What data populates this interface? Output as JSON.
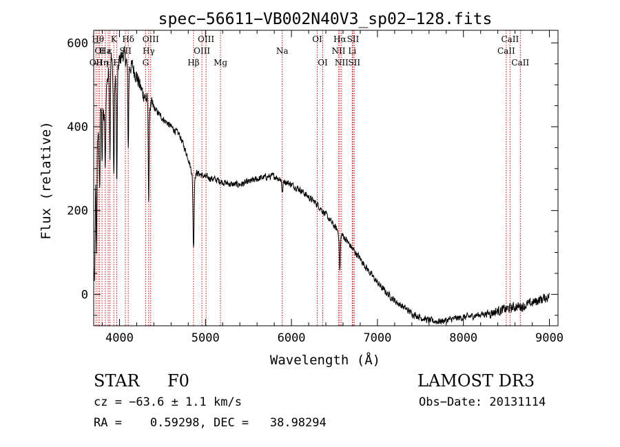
{
  "chart_data": {
    "type": "line",
    "title": "spec−56611−VB002N40V3_sp02−128.fits",
    "xlabel": "Wavelength (Å)",
    "ylabel": "Flux (relative)",
    "xlim": [
      3700,
      9100
    ],
    "ylim": [
      -75,
      630
    ],
    "xticks": [
      4000,
      5000,
      6000,
      7000,
      8000,
      9000
    ],
    "yticks": [
      0,
      200,
      400,
      600
    ],
    "x_minor_step": 200,
    "y_minor_step": 50,
    "line_color": "#000000",
    "marker_color": "#cc0000",
    "spectrum_knots": [
      [
        3700,
        60
      ],
      [
        3710,
        10
      ],
      [
        3725,
        320
      ],
      [
        3745,
        390
      ],
      [
        3760,
        360
      ],
      [
        3790,
        470
      ],
      [
        3820,
        420
      ],
      [
        3850,
        500
      ],
      [
        3880,
        540
      ],
      [
        3900,
        580
      ],
      [
        3935,
        500
      ],
      [
        3970,
        520
      ],
      [
        4000,
        560
      ],
      [
        4050,
        575
      ],
      [
        4102,
        540
      ],
      [
        4150,
        545
      ],
      [
        4200,
        520
      ],
      [
        4250,
        490
      ],
      [
        4300,
        470
      ],
      [
        4340,
        455
      ],
      [
        4400,
        445
      ],
      [
        4500,
        420
      ],
      [
        4600,
        400
      ],
      [
        4700,
        380
      ],
      [
        4800,
        325
      ],
      [
        4830,
        300
      ],
      [
        4861,
        280
      ],
      [
        4900,
        290
      ],
      [
        4950,
        285
      ],
      [
        5000,
        280
      ],
      [
        5100,
        275
      ],
      [
        5200,
        268
      ],
      [
        5300,
        262
      ],
      [
        5400,
        262
      ],
      [
        5500,
        268
      ],
      [
        5600,
        275
      ],
      [
        5700,
        280
      ],
      [
        5800,
        282
      ],
      [
        5900,
        272
      ],
      [
        6000,
        262
      ],
      [
        6100,
        250
      ],
      [
        6200,
        232
      ],
      [
        6300,
        215
      ],
      [
        6400,
        190
      ],
      [
        6500,
        162
      ],
      [
        6563,
        145
      ],
      [
        6600,
        140
      ],
      [
        6700,
        112
      ],
      [
        6800,
        85
      ],
      [
        6900,
        55
      ],
      [
        7000,
        28
      ],
      [
        7100,
        5
      ],
      [
        7200,
        -15
      ],
      [
        7300,
        -30
      ],
      [
        7400,
        -45
      ],
      [
        7500,
        -55
      ],
      [
        7600,
        -62
      ],
      [
        7700,
        -65
      ],
      [
        7800,
        -62
      ],
      [
        7900,
        -58
      ],
      [
        8000,
        -55
      ],
      [
        8100,
        -52
      ],
      [
        8200,
        -48
      ],
      [
        8300,
        -45
      ],
      [
        8400,
        -40
      ],
      [
        8500,
        -35
      ],
      [
        8600,
        -30
      ],
      [
        8700,
        -28
      ],
      [
        8800,
        -20
      ],
      [
        8900,
        -12
      ],
      [
        9000,
        -5
      ]
    ],
    "absorption_lines": [
      {
        "x": 3733,
        "depth": 250
      },
      {
        "x": 3770,
        "depth": 140
      },
      {
        "x": 3797,
        "depth": 130
      },
      {
        "x": 3835,
        "depth": 170
      },
      {
        "x": 3889,
        "depth": 220
      },
      {
        "x": 3934,
        "depth": 220
      },
      {
        "x": 3969,
        "depth": 260
      },
      {
        "x": 4102,
        "depth": 190
      },
      {
        "x": 4340,
        "depth": 230
      },
      {
        "x": 4861,
        "depth": 170
      },
      {
        "x": 5895,
        "depth": 30
      },
      {
        "x": 6563,
        "depth": 90
      }
    ],
    "line_markers": [
      {
        "x": 3727,
        "label": "OII",
        "row": 2
      },
      {
        "x": 3750,
        "label": "Hθ",
        "row": 0
      },
      {
        "x": 3769,
        "label": "OI",
        "row": 1
      },
      {
        "x": 3797,
        "label": "Hη",
        "row": 2
      },
      {
        "x": 3835,
        "label": "Ha",
        "row": 1
      },
      {
        "x": 3869,
        "label": "ι",
        "row": 2
      },
      {
        "x": 3889,
        "label": "ε",
        "row": 1
      },
      {
        "x": 3934,
        "label": "K",
        "row": 0
      },
      {
        "x": 3969,
        "label": "H",
        "row": 2
      },
      {
        "x": 4069,
        "label": "SII",
        "row": 1
      },
      {
        "x": 4102,
        "label": "Hδ",
        "row": 0
      },
      {
        "x": 4304,
        "label": "G",
        "row": 2
      },
      {
        "x": 4340,
        "label": "Hγ",
        "row": 1
      },
      {
        "x": 4363,
        "label": "OIII",
        "row": 0
      },
      {
        "x": 4861,
        "label": "Hβ",
        "row": 2
      },
      {
        "x": 4959,
        "label": "OIII",
        "row": 1
      },
      {
        "x": 5007,
        "label": "OIII",
        "row": 0
      },
      {
        "x": 5175,
        "label": "Mg",
        "row": 2
      },
      {
        "x": 5893,
        "label": "Na",
        "row": 1
      },
      {
        "x": 6300,
        "label": "OI",
        "row": 0
      },
      {
        "x": 6364,
        "label": "OI",
        "row": 2
      },
      {
        "x": 6548,
        "label": "NII",
        "row": 1
      },
      {
        "x": 6563,
        "label": "Hα",
        "row": 0
      },
      {
        "x": 6583,
        "label": "NII",
        "row": 2
      },
      {
        "x": 6707,
        "label": "Li",
        "row": 1
      },
      {
        "x": 6716,
        "label": "SII",
        "row": 0
      },
      {
        "x": 6731,
        "label": "SII",
        "row": 2
      },
      {
        "x": 8498,
        "label": "CaII",
        "row": 1
      },
      {
        "x": 8542,
        "label": "CaII",
        "row": 0
      },
      {
        "x": 8662,
        "label": "CaII",
        "row": 2
      }
    ]
  },
  "info": {
    "object_class": "STAR",
    "subclass": "F0",
    "survey": "LAMOST DR3",
    "cz": "cz = −63.6 ± 1.1 km/s",
    "obs_date": "Obs−Date: 20131114",
    "coords": "RA =    0.59298, DEC =   38.98294"
  }
}
